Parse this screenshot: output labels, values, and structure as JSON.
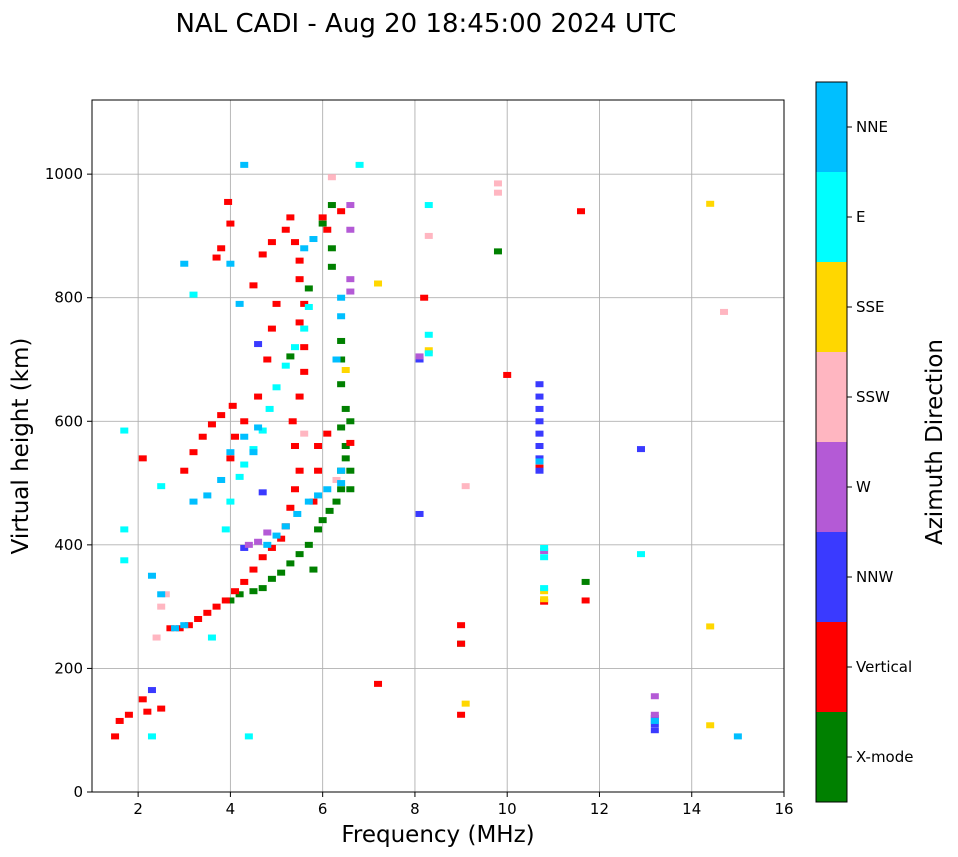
{
  "chart_data": {
    "type": "scatter",
    "title": "NAL CADI - Aug 20 18:45:00 2024 UTC",
    "xlabel": "Frequency (MHz)",
    "ylabel": "Virtual height (km)",
    "xlim": [
      1,
      16
    ],
    "ylim": [
      0,
      1120
    ],
    "xticks": [
      2,
      4,
      6,
      8,
      10,
      12,
      14,
      16
    ],
    "yticks": [
      0,
      200,
      400,
      600,
      800,
      1000
    ],
    "grid": true,
    "colorbar": {
      "title": "Azimuth Direction",
      "categories": [
        "X-mode",
        "Vertical",
        "NNW",
        "W",
        "SSW",
        "SSE",
        "E",
        "NNE"
      ],
      "colors": [
        "#008000",
        "#ff0000",
        "#3a3aff",
        "#b45ad6",
        "#ffb6c1",
        "#ffd700",
        "#00ffff",
        "#00bfff"
      ]
    },
    "series": [
      {
        "name": "X-mode",
        "points": [
          [
            4.0,
            310
          ],
          [
            4.2,
            320
          ],
          [
            4.5,
            325
          ],
          [
            4.7,
            330
          ],
          [
            4.9,
            345
          ],
          [
            5.1,
            355
          ],
          [
            5.3,
            370
          ],
          [
            5.5,
            385
          ],
          [
            5.7,
            400
          ],
          [
            5.9,
            425
          ],
          [
            6.0,
            440
          ],
          [
            6.15,
            455
          ],
          [
            6.3,
            470
          ],
          [
            6.4,
            490
          ],
          [
            6.4,
            520
          ],
          [
            6.5,
            540
          ],
          [
            6.5,
            560
          ],
          [
            6.4,
            590
          ],
          [
            6.5,
            620
          ],
          [
            6.4,
            660
          ],
          [
            6.4,
            700
          ],
          [
            6.4,
            730
          ],
          [
            6.6,
            490
          ],
          [
            6.6,
            520
          ],
          [
            6.6,
            600
          ],
          [
            6.2,
            850
          ],
          [
            6.2,
            880
          ],
          [
            6.0,
            920
          ],
          [
            6.2,
            950
          ],
          [
            5.7,
            815
          ],
          [
            5.3,
            705
          ],
          [
            5.8,
            360
          ],
          [
            9.0,
            240
          ],
          [
            11.7,
            340
          ],
          [
            9.8,
            875
          ]
        ]
      },
      {
        "name": "Vertical",
        "points": [
          [
            1.5,
            90
          ],
          [
            1.6,
            115
          ],
          [
            1.8,
            125
          ],
          [
            2.1,
            150
          ],
          [
            2.2,
            130
          ],
          [
            2.5,
            135
          ],
          [
            2.7,
            265
          ],
          [
            2.9,
            265
          ],
          [
            3.1,
            270
          ],
          [
            3.3,
            280
          ],
          [
            3.5,
            290
          ],
          [
            3.7,
            300
          ],
          [
            3.9,
            310
          ],
          [
            4.1,
            325
          ],
          [
            4.3,
            340
          ],
          [
            4.5,
            360
          ],
          [
            4.7,
            380
          ],
          [
            4.9,
            395
          ],
          [
            5.1,
            410
          ],
          [
            5.2,
            430
          ],
          [
            5.3,
            460
          ],
          [
            5.4,
            490
          ],
          [
            5.5,
            520
          ],
          [
            5.4,
            560
          ],
          [
            5.35,
            600
          ],
          [
            5.5,
            640
          ],
          [
            5.6,
            680
          ],
          [
            5.6,
            720
          ],
          [
            5.5,
            760
          ],
          [
            5.6,
            790
          ],
          [
            5.5,
            830
          ],
          [
            5.5,
            860
          ],
          [
            5.4,
            890
          ],
          [
            5.3,
            930
          ],
          [
            3.0,
            520
          ],
          [
            3.2,
            550
          ],
          [
            3.4,
            575
          ],
          [
            3.6,
            595
          ],
          [
            3.8,
            610
          ],
          [
            4.05,
            625
          ],
          [
            4.1,
            575
          ],
          [
            4.0,
            540
          ],
          [
            4.3,
            600
          ],
          [
            4.6,
            640
          ],
          [
            4.8,
            700
          ],
          [
            4.9,
            750
          ],
          [
            5.0,
            790
          ],
          [
            4.5,
            820
          ],
          [
            4.7,
            870
          ],
          [
            4.9,
            890
          ],
          [
            5.2,
            910
          ],
          [
            3.95,
            955
          ],
          [
            4.0,
            920
          ],
          [
            3.8,
            880
          ],
          [
            3.7,
            865
          ],
          [
            5.8,
            470
          ],
          [
            5.9,
            520
          ],
          [
            5.9,
            560
          ],
          [
            6.1,
            580
          ],
          [
            6.6,
            565
          ],
          [
            6.0,
            930
          ],
          [
            6.1,
            910
          ],
          [
            6.4,
            940
          ],
          [
            8.2,
            800
          ],
          [
            9.0,
            240
          ],
          [
            9.0,
            270
          ],
          [
            9.0,
            125
          ],
          [
            10.7,
            525
          ],
          [
            10.0,
            675
          ],
          [
            11.6,
            940
          ],
          [
            11.7,
            310
          ],
          [
            10.8,
            308
          ],
          [
            2.1,
            540
          ],
          [
            7.2,
            175
          ]
        ]
      },
      {
        "name": "NNW",
        "points": [
          [
            10.7,
            520
          ],
          [
            10.7,
            540
          ],
          [
            10.7,
            560
          ],
          [
            10.7,
            580
          ],
          [
            10.7,
            600
          ],
          [
            10.7,
            620
          ],
          [
            10.7,
            640
          ],
          [
            10.7,
            660
          ],
          [
            12.9,
            555
          ],
          [
            13.2,
            100
          ],
          [
            13.2,
            110
          ],
          [
            13.2,
            120
          ],
          [
            4.7,
            485
          ],
          [
            4.3,
            395
          ],
          [
            8.1,
            450
          ],
          [
            8.1,
            700
          ],
          [
            2.3,
            165
          ],
          [
            4.6,
            725
          ]
        ]
      },
      {
        "name": "W",
        "points": [
          [
            6.6,
            950
          ],
          [
            6.6,
            910
          ],
          [
            6.6,
            830
          ],
          [
            6.6,
            810
          ],
          [
            13.2,
            155
          ],
          [
            13.2,
            125
          ],
          [
            4.4,
            400
          ],
          [
            4.6,
            405
          ],
          [
            4.8,
            420
          ],
          [
            8.1,
            705
          ],
          [
            10.8,
            390
          ]
        ]
      },
      {
        "name": "SSW",
        "points": [
          [
            2.4,
            250
          ],
          [
            2.5,
            300
          ],
          [
            2.6,
            320
          ],
          [
            6.2,
            995
          ],
          [
            8.3,
            900
          ],
          [
            9.1,
            495
          ],
          [
            9.8,
            985
          ],
          [
            9.8,
            970
          ],
          [
            14.7,
            777
          ],
          [
            6.3,
            505
          ],
          [
            5.6,
            580
          ]
        ]
      },
      {
        "name": "SSE",
        "points": [
          [
            14.4,
            952
          ],
          [
            14.4,
            268
          ],
          [
            14.4,
            108
          ],
          [
            8.3,
            715
          ],
          [
            9.1,
            143
          ],
          [
            7.2,
            823
          ],
          [
            10.8,
            312
          ],
          [
            10.8,
            325
          ],
          [
            6.5,
            683
          ]
        ]
      },
      {
        "name": "E",
        "points": [
          [
            1.7,
            585
          ],
          [
            1.7,
            425
          ],
          [
            1.7,
            375
          ],
          [
            3.9,
            425
          ],
          [
            4.0,
            470
          ],
          [
            4.2,
            510
          ],
          [
            4.3,
            530
          ],
          [
            4.5,
            555
          ],
          [
            4.7,
            585
          ],
          [
            4.85,
            620
          ],
          [
            5.0,
            655
          ],
          [
            5.2,
            690
          ],
          [
            5.4,
            720
          ],
          [
            5.6,
            750
          ],
          [
            5.7,
            785
          ],
          [
            3.6,
            250
          ],
          [
            8.3,
            950
          ],
          [
            8.3,
            740
          ],
          [
            8.3,
            710
          ],
          [
            12.9,
            385
          ],
          [
            10.8,
            395
          ],
          [
            10.8,
            380
          ],
          [
            10.8,
            330
          ],
          [
            6.8,
            1015
          ],
          [
            2.5,
            495
          ],
          [
            3.2,
            805
          ],
          [
            4.4,
            90
          ],
          [
            2.3,
            90
          ]
        ]
      },
      {
        "name": "NNE",
        "points": [
          [
            2.3,
            350
          ],
          [
            2.5,
            320
          ],
          [
            2.8,
            265
          ],
          [
            3.0,
            270
          ],
          [
            3.2,
            470
          ],
          [
            3.5,
            480
          ],
          [
            3.8,
            505
          ],
          [
            4.0,
            550
          ],
          [
            4.3,
            575
          ],
          [
            4.6,
            590
          ],
          [
            4.8,
            400
          ],
          [
            5.0,
            415
          ],
          [
            5.2,
            430
          ],
          [
            5.45,
            450
          ],
          [
            5.7,
            470
          ],
          [
            5.9,
            480
          ],
          [
            6.1,
            490
          ],
          [
            6.4,
            500
          ],
          [
            6.4,
            770
          ],
          [
            6.4,
            800
          ],
          [
            6.3,
            700
          ],
          [
            6.4,
            520
          ],
          [
            5.8,
            895
          ],
          [
            5.6,
            880
          ],
          [
            4.0,
            855
          ],
          [
            4.3,
            1015
          ],
          [
            4.2,
            790
          ],
          [
            4.5,
            550
          ],
          [
            15.0,
            90
          ],
          [
            13.2,
            115
          ],
          [
            10.7,
            535
          ],
          [
            3.0,
            855
          ]
        ]
      }
    ]
  }
}
